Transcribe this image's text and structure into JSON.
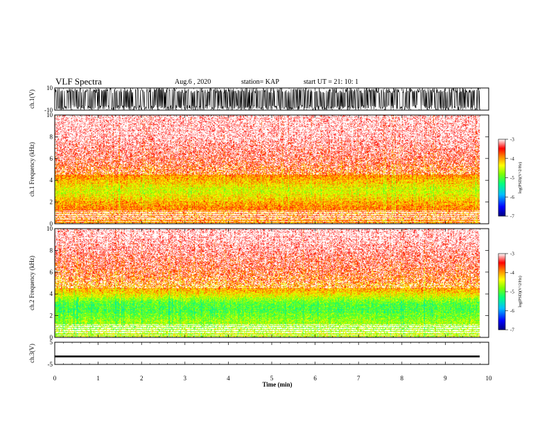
{
  "header": {
    "title": "VLF Spectra",
    "date": "Aug.6 , 2020",
    "station": "station= KAP",
    "start_ut": "start UT = 21: 10: 1"
  },
  "colorbars": [
    {
      "ticks": [
        "-3",
        "-4",
        "-5",
        "-6",
        "-7"
      ],
      "label": "log(PSD)(V^2/Hz)"
    },
    {
      "ticks": [
        "-3",
        "-4",
        "-5",
        "-6",
        "-7"
      ],
      "label": "log(PSD)(V^2/Hz)"
    }
  ],
  "colors": {
    "psd_scale": [
      "#0000ff",
      "#00bfff",
      "#00ff80",
      "#80ff00",
      "#ffff00",
      "#ff8000",
      "#ff0000",
      "#ffffff"
    ]
  },
  "chart_data": [
    {
      "type": "line",
      "panel": "ch1_waveform",
      "ylabel": "ch.1(V)",
      "ylim": [
        -10,
        10
      ],
      "yticks": [
        "10",
        "-10"
      ],
      "xlim": [
        0,
        10
      ],
      "description_values": {
        "amplitude_range_V": [
          -10,
          10
        ]
      }
    },
    {
      "type": "heatmap",
      "panel": "ch1_spectrogram",
      "ylabel": "ch.1 Frequency (kHz)",
      "ylim": [
        0,
        10
      ],
      "yticks": [
        "0",
        "2",
        "4",
        "6",
        "8",
        "10"
      ],
      "xlim": [
        0,
        10
      ],
      "colorbar_range": [
        -7,
        -3
      ],
      "profile": [
        {
          "freq_kHz": 0.5,
          "log_psd": -3.9
        },
        {
          "freq_kHz": 1.5,
          "log_psd": -3.9
        },
        {
          "freq_kHz": 2.5,
          "log_psd": -4.3
        },
        {
          "freq_kHz": 3.0,
          "log_psd": -4.5
        },
        {
          "freq_kHz": 3.5,
          "log_psd": -4.3
        },
        {
          "freq_kHz": 4.5,
          "log_psd": -3.9
        },
        {
          "freq_kHz": 6.0,
          "log_psd": -3.5
        },
        {
          "freq_kHz": 8.0,
          "log_psd": -3.2
        },
        {
          "freq_kHz": 9.5,
          "log_psd": -3.1
        }
      ]
    },
    {
      "type": "heatmap",
      "panel": "ch2_spectrogram",
      "ylabel": "ch.2 Frequency (kHz)",
      "ylim": [
        0,
        10
      ],
      "yticks": [
        "0",
        "2",
        "4",
        "6",
        "8",
        "10"
      ],
      "xlim": [
        0,
        10
      ],
      "colorbar_range": [
        -7,
        -3
      ],
      "profile": [
        {
          "freq_kHz": 0.5,
          "log_psd": -4.6
        },
        {
          "freq_kHz": 1.5,
          "log_psd": -4.7
        },
        {
          "freq_kHz": 2.5,
          "log_psd": -5.0
        },
        {
          "freq_kHz": 3.0,
          "log_psd": -5.0
        },
        {
          "freq_kHz": 3.7,
          "log_psd": -4.5
        },
        {
          "freq_kHz": 4.5,
          "log_psd": -4.0
        },
        {
          "freq_kHz": 6.0,
          "log_psd": -3.7
        },
        {
          "freq_kHz": 8.0,
          "log_psd": -3.3
        },
        {
          "freq_kHz": 9.5,
          "log_psd": -3.1
        }
      ]
    },
    {
      "type": "line",
      "panel": "ch3_waveform",
      "ylabel": "ch.3(V)",
      "ylim": [
        -5,
        5
      ],
      "yticks": [
        "5",
        "-5"
      ],
      "xlim": [
        0,
        10
      ],
      "description_values": {
        "band_V": [
          -1.8,
          -1.0
        ]
      }
    }
  ],
  "xaxis": {
    "label": "Time (min)",
    "ticks": [
      "0",
      "1",
      "2",
      "3",
      "4",
      "5",
      "6",
      "7",
      "8",
      "9",
      "10"
    ]
  }
}
